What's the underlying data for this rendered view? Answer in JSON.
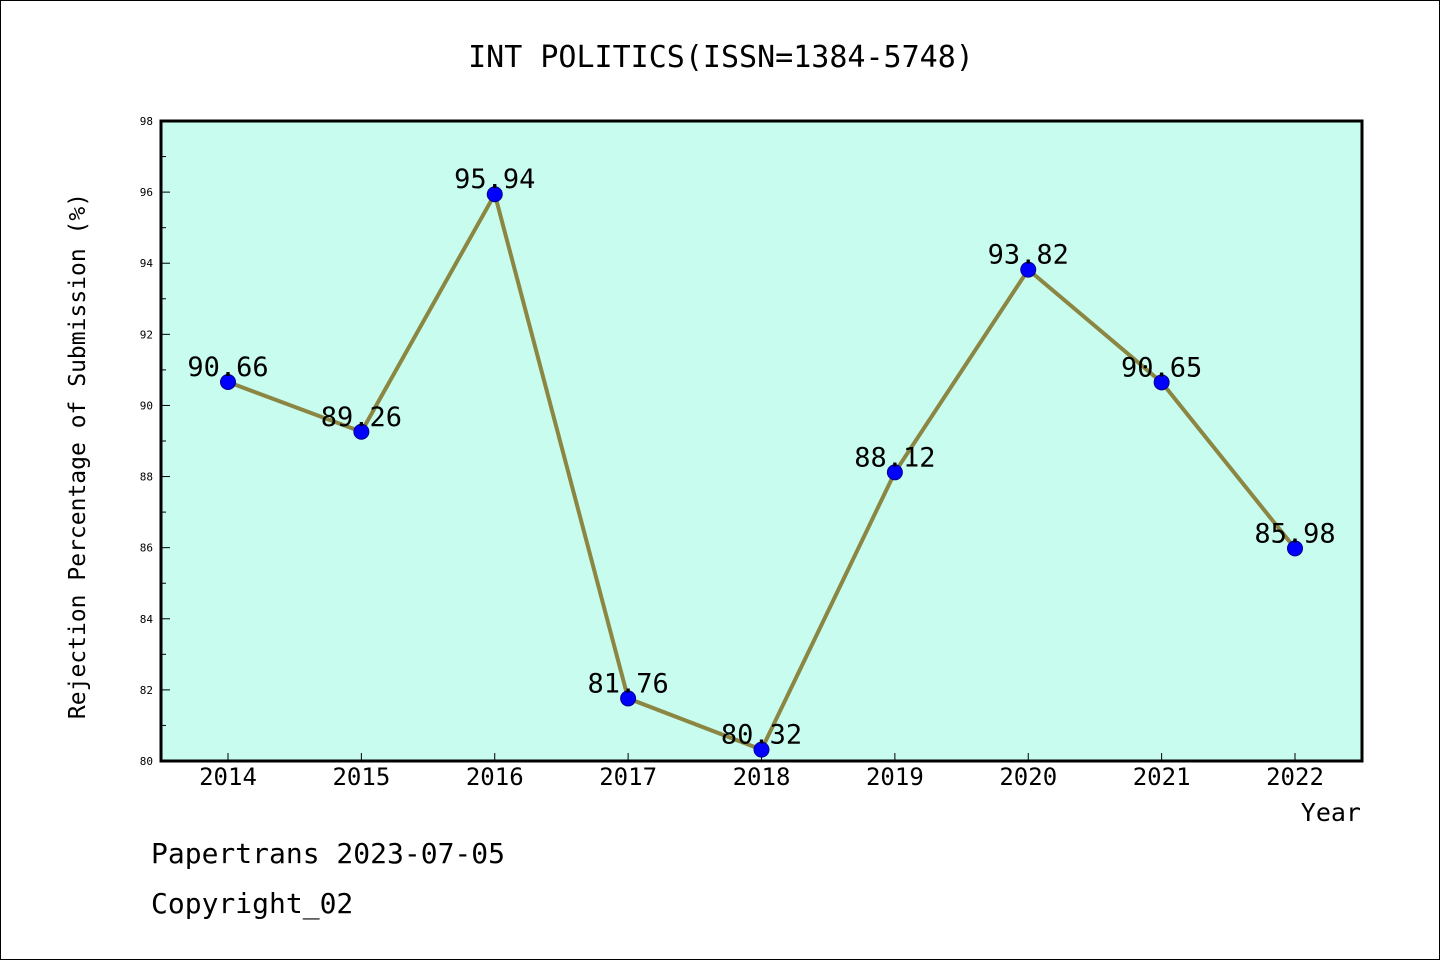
{
  "footer": {
    "line1": "Papertrans 2023-07-05",
    "line2": "Copyright_02"
  },
  "colors": {
    "plot_bg": "#c8fcee",
    "line": "#8b8642",
    "marker": "#0000ff"
  },
  "chart_data": {
    "type": "line",
    "title": "INT POLITICS(ISSN=1384-5748)",
    "xlabel": "Year",
    "ylabel": "Rejection Percentage of Submission (%)",
    "categories": [
      "2014",
      "2015",
      "2016",
      "2017",
      "2018",
      "2019",
      "2020",
      "2021",
      "2022"
    ],
    "series": [
      {
        "values": [
          90.66,
          89.26,
          95.94,
          81.76,
          80.32,
          88.12,
          93.82,
          90.65,
          85.98
        ],
        "labels": [
          "90.66",
          "89.26",
          "95.94",
          "81.76",
          "80.32",
          "88.12",
          "93.82",
          "90.65",
          "85.98"
        ]
      }
    ],
    "ylim": [
      80,
      98
    ],
    "yticks": [
      "80",
      "82",
      "84",
      "86",
      "88",
      "90",
      "92",
      "94",
      "96",
      "98"
    ],
    "grid": false,
    "legend": "none"
  }
}
